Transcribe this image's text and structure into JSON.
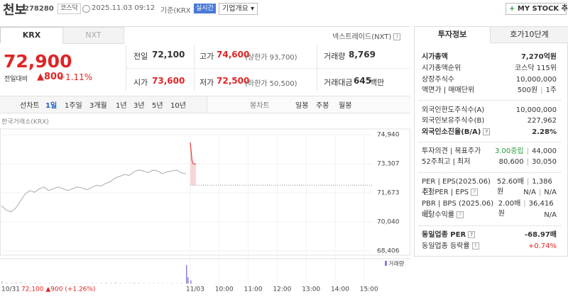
{
  "header": {
    "name": "천보",
    "code": "278280",
    "market": "코스닥",
    "time": "2025.11.03 09:12",
    "basis": "기준(KRX 장중)",
    "realtime": "실시간",
    "overview": "기업개요",
    "mystock": "MY STOCK 추가"
  },
  "tabs": {
    "krx": "KRX",
    "nxt": "NXT",
    "nxt_link": "넥스트레이드(NXT)"
  },
  "quote": {
    "price": "72,900",
    "change_label": "전일대비",
    "change": "800",
    "change_rate": "+1.11%",
    "rows": [
      [
        {
          "label": "전일",
          "value": "72,100"
        },
        {
          "label": "고가",
          "value": "74,600",
          "note": "(상한가 93,700)"
        },
        {
          "label": "거래량",
          "value": "8,769"
        }
      ],
      [
        {
          "label": "시가",
          "value": "73,600"
        },
        {
          "label": "저가",
          "value": "72,500",
          "note": "(하한가 50,500)"
        },
        {
          "label": "거래대금",
          "value": "645",
          "unit": "백만"
        }
      ]
    ]
  },
  "periods": {
    "line_label": "선차트",
    "line": [
      "1일",
      "1주일",
      "3개월",
      "1년",
      "3년",
      "5년",
      "10년"
    ],
    "candle_label": "봉차트",
    "candle": [
      "일봉",
      "주봉",
      "월봉"
    ]
  },
  "chart_data": {
    "type": "line",
    "source": "한국거래소(KRX)",
    "footer_quote": "72,100 ▲900 (+1.26%)",
    "grid": true,
    "ylim": [
      68406,
      74940
    ],
    "yticks": [
      {
        "value": 74940,
        "label": "74,940"
      },
      {
        "value": 73307,
        "label": "73,307"
      },
      {
        "value": 71673,
        "label": "71,673"
      },
      {
        "value": 70040,
        "label": "70,040"
      },
      {
        "value": 68406,
        "label": "68,406"
      }
    ],
    "xlim": [
      9,
      15.3
    ],
    "xticks": [
      {
        "value": 9,
        "label": "11/03"
      },
      {
        "value": 10,
        "label": "10:00"
      },
      {
        "value": 11,
        "label": "11:00"
      },
      {
        "value": 12,
        "label": "12:00"
      },
      {
        "value": 13,
        "label": "13:00"
      },
      {
        "value": 14,
        "label": "14:00"
      },
      {
        "value": 15,
        "label": "15:00"
      }
    ],
    "prev_close": 72100,
    "series": [
      {
        "name": "10/31",
        "color": "#aaaaaa",
        "values": [
          70950,
          70700,
          70600,
          70800,
          71200,
          71600,
          71800,
          71700,
          71900,
          72000,
          71800,
          71900,
          72000,
          71900,
          71800,
          71900,
          72000,
          71950,
          71850,
          71950,
          72100,
          72050,
          72200,
          72300,
          72500,
          72600,
          72700,
          72650,
          72850,
          72950,
          72900,
          72800,
          72950,
          72900,
          72750,
          72850,
          72900,
          72950,
          72800,
          72750
        ]
      },
      {
        "color": "#e63b3b",
        "x": [
          9,
          9.03,
          9.06,
          9.1,
          9.15,
          9.2
        ],
        "values": [
          74500,
          74000,
          73500,
          73300,
          73300,
          73300
        ]
      }
    ],
    "volume": {
      "label": "거래량",
      "color": "#8a7fd6",
      "prev_color": "#bbbbbb",
      "prev": [
        300,
        120,
        80,
        150,
        200,
        90,
        60,
        110,
        70,
        50,
        90,
        60,
        40,
        80,
        50,
        70,
        60,
        40,
        50,
        90,
        60,
        80,
        120,
        100,
        150,
        90,
        70,
        60,
        110,
        80,
        60,
        50,
        70,
        60,
        40,
        50,
        80,
        60,
        90,
        250
      ],
      "x": [
        9,
        9.05,
        9.15
      ],
      "today": [
        2400,
        800,
        400
      ]
    }
  },
  "invest": {
    "tabs": [
      "투자정보",
      "호가10단계"
    ],
    "groups": [
      [
        {
          "label": "시가총액",
          "value": "7,270억원"
        },
        {
          "label": "시가총액순위",
          "value": "코스닥 115위"
        },
        {
          "label": "상장주식수",
          "value": "10,000,000"
        },
        {
          "label": "액면가 | 매매단위",
          "values": [
            "500원",
            "1주"
          ]
        }
      ],
      [
        {
          "label": "외국인한도주식수(A)",
          "value": "10,000,000"
        },
        {
          "label": "외국인보유주식수(B)",
          "value": "227,962"
        },
        {
          "label": "외국인소진율(B/A)",
          "value": "2.28%"
        }
      ],
      [
        {
          "label": "투자의견 | 목표주가",
          "values": [
            "3.00중립",
            "44,000"
          ]
        },
        {
          "label": "52주최고 | 최저",
          "values": [
            "80,600",
            "30,050"
          ]
        }
      ],
      [
        {
          "label": "PER | EPS(2025.06)",
          "values": [
            "52.60배",
            "1,386원"
          ]
        },
        {
          "label": "추정PER | EPS",
          "values": [
            "N/A",
            "N/A"
          ]
        },
        {
          "label": "PBR | BPS (2025.06)",
          "values": [
            "2.00배",
            "36,416원"
          ]
        },
        {
          "label": "배당수익률",
          "value": "N/A"
        }
      ],
      [
        {
          "label": "동일업종 PER",
          "value": "-68.97배"
        },
        {
          "label": "동일업종 등락률",
          "value": "+0.74%"
        }
      ]
    ]
  }
}
